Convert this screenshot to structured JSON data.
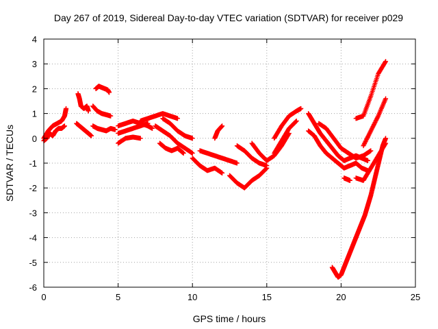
{
  "chart_data": {
    "type": "scatter",
    "title": "Day 267 of 2019, Sidereal Day-to-day VTEC variation (SDTVAR) for receiver p029",
    "xlabel": "GPS time / hours",
    "ylabel": "SDTVAR / TECUs",
    "xlim": [
      0,
      25
    ],
    "ylim": [
      -6,
      4
    ],
    "x_ticks": [
      0,
      5,
      10,
      15,
      20,
      25
    ],
    "x_tick_labels": [
      "0",
      "5",
      "10",
      "15",
      "20",
      "25"
    ],
    "y_ticks": [
      -6,
      -5,
      -4,
      -3,
      -2,
      -1,
      0,
      1,
      2,
      3,
      4
    ],
    "y_tick_labels": [
      "-6",
      "-5",
      "-4",
      "-3",
      "-2",
      "-1",
      "0",
      "1",
      "2",
      "3",
      "4"
    ],
    "grid": true,
    "marker": "+",
    "color": "#ff0000",
    "series": [
      {
        "name": "s1",
        "x": [
          0.0,
          0.3,
          0.6,
          0.9,
          1.2,
          1.4,
          1.5
        ],
        "y": [
          0.0,
          0.3,
          0.5,
          0.6,
          0.7,
          0.9,
          1.2
        ]
      },
      {
        "name": "s2",
        "x": [
          0.0,
          0.2,
          0.4,
          0.6,
          0.8,
          1.0,
          1.2,
          1.4
        ],
        "y": [
          -0.1,
          0.0,
          0.2,
          0.1,
          0.3,
          0.4,
          0.4,
          0.5
        ]
      },
      {
        "name": "s3",
        "x": [
          2.3,
          2.4,
          2.5,
          2.7,
          2.9,
          3.0
        ],
        "y": [
          1.8,
          1.6,
          1.3,
          1.2,
          1.3,
          1.1
        ]
      },
      {
        "name": "s4",
        "x": [
          2.2,
          2.4,
          2.6,
          2.8,
          3.0,
          3.2
        ],
        "y": [
          0.6,
          0.5,
          0.4,
          0.3,
          0.2,
          0.1
        ]
      },
      {
        "name": "s5",
        "x": [
          3.5,
          3.7,
          3.9,
          4.1,
          4.3,
          4.4
        ],
        "y": [
          2.0,
          2.1,
          2.05,
          2.0,
          1.95,
          1.85
        ]
      },
      {
        "name": "s6",
        "x": [
          3.3,
          3.6,
          3.9,
          4.2,
          4.5
        ],
        "y": [
          1.3,
          1.1,
          1.0,
          0.95,
          0.9
        ]
      },
      {
        "name": "s7",
        "x": [
          3.3,
          3.6,
          3.9,
          4.2,
          4.5,
          4.8
        ],
        "y": [
          0.5,
          0.4,
          0.35,
          0.3,
          0.4,
          0.35
        ]
      },
      {
        "name": "s8",
        "x": [
          5.0,
          5.5,
          6.0,
          6.5,
          7.0,
          7.3
        ],
        "y": [
          0.5,
          0.6,
          0.7,
          0.6,
          0.5,
          0.4
        ]
      },
      {
        "name": "s9",
        "x": [
          5.0,
          5.5,
          6.0,
          6.5,
          7.0
        ],
        "y": [
          0.2,
          0.3,
          0.4,
          0.5,
          0.6
        ]
      },
      {
        "name": "s10",
        "x": [
          6.5,
          7.0,
          7.5,
          8.0,
          8.5,
          9.0
        ],
        "y": [
          0.7,
          0.8,
          0.9,
          1.0,
          0.9,
          0.8
        ]
      },
      {
        "name": "s11",
        "x": [
          5.0,
          5.5,
          6.0,
          6.5
        ],
        "y": [
          -0.2,
          0.0,
          0.05,
          0.0
        ]
      },
      {
        "name": "s12",
        "x": [
          7.5,
          8.0,
          8.5,
          9.0,
          9.5,
          10.0
        ],
        "y": [
          0.5,
          0.3,
          0.1,
          -0.2,
          -0.4,
          -0.6
        ]
      },
      {
        "name": "s13",
        "x": [
          8.0,
          8.5,
          9.0,
          9.5,
          10.0
        ],
        "y": [
          0.8,
          0.6,
          0.3,
          0.1,
          0.0
        ]
      },
      {
        "name": "s14",
        "x": [
          7.8,
          8.2,
          8.6,
          9.0,
          9.4
        ],
        "y": [
          -0.2,
          -0.4,
          -0.5,
          -0.4,
          -0.6
        ]
      },
      {
        "name": "s15",
        "x": [
          10.0,
          10.5,
          11.0,
          11.5,
          12.0
        ],
        "y": [
          -0.8,
          -1.1,
          -1.3,
          -1.2,
          -1.4
        ]
      },
      {
        "name": "s16",
        "x": [
          10.5,
          11.0,
          11.5,
          12.0,
          12.5,
          13.0
        ],
        "y": [
          -0.5,
          -0.6,
          -0.7,
          -0.8,
          -0.9,
          -1.0
        ]
      },
      {
        "name": "s17",
        "x": [
          11.5,
          11.7,
          12.0
        ],
        "y": [
          0.0,
          0.3,
          0.5
        ]
      },
      {
        "name": "s18",
        "x": [
          12.5,
          13.0,
          13.5,
          14.0,
          14.5,
          15.0
        ],
        "y": [
          -1.5,
          -1.8,
          -2.0,
          -1.7,
          -1.5,
          -1.2
        ]
      },
      {
        "name": "s19",
        "x": [
          13.0,
          13.5,
          14.0,
          14.5,
          15.0
        ],
        "y": [
          -0.3,
          -0.5,
          -0.8,
          -1.0,
          -1.1
        ]
      },
      {
        "name": "s20",
        "x": [
          14.0,
          14.5,
          15.0,
          15.5,
          16.0,
          16.5
        ],
        "y": [
          -0.2,
          -0.6,
          -0.9,
          -0.7,
          -0.3,
          0.2
        ]
      },
      {
        "name": "s21",
        "x": [
          15.5,
          16.0,
          16.5,
          17.0,
          17.3
        ],
        "y": [
          0.0,
          0.5,
          0.9,
          1.1,
          1.2
        ]
      },
      {
        "name": "s22",
        "x": [
          15.5,
          16.0,
          16.5,
          17.0
        ],
        "y": [
          -0.6,
          -0.1,
          0.4,
          0.7
        ]
      },
      {
        "name": "s23",
        "x": [
          17.8,
          18.2,
          18.6,
          19.0,
          19.4,
          19.8,
          20.2,
          20.6,
          21.0,
          21.4,
          21.8
        ],
        "y": [
          1.0,
          0.6,
          0.2,
          -0.1,
          -0.4,
          -0.7,
          -0.9,
          -0.8,
          -0.7,
          -0.8,
          -0.9
        ]
      },
      {
        "name": "s24",
        "x": [
          17.8,
          18.2,
          18.6,
          19.0,
          19.4,
          19.8,
          20.2,
          20.6,
          21.0,
          21.4,
          21.8
        ],
        "y": [
          0.3,
          0.1,
          -0.3,
          -0.6,
          -0.8,
          -1.0,
          -1.2,
          -1.1,
          -1.0,
          -1.2,
          -1.3
        ]
      },
      {
        "name": "s25",
        "x": [
          18.5,
          19.0,
          19.5,
          20.0,
          20.5,
          21.0,
          21.5,
          22.0
        ],
        "y": [
          0.6,
          0.4,
          0.0,
          -0.4,
          -0.6,
          -0.8,
          -0.7,
          -0.5
        ]
      },
      {
        "name": "s26",
        "x": [
          19.4,
          19.6,
          19.8,
          20.0,
          20.2,
          20.4,
          20.6,
          20.8,
          21.0,
          21.2,
          21.4,
          21.6,
          21.8,
          22.0,
          22.2,
          22.4,
          22.6,
          22.8,
          23.0
        ],
        "y": [
          -5.2,
          -5.4,
          -5.6,
          -5.5,
          -5.2,
          -4.9,
          -4.6,
          -4.3,
          -4.0,
          -3.7,
          -3.4,
          -3.1,
          -2.7,
          -2.3,
          -1.8,
          -1.3,
          -0.8,
          -0.3,
          0.0
        ]
      },
      {
        "name": "s27",
        "x": [
          20.2,
          20.4,
          20.6
        ],
        "y": [
          -1.6,
          -1.65,
          -1.7
        ]
      },
      {
        "name": "s28",
        "x": [
          21.0,
          21.5,
          22.0,
          22.5,
          23.0
        ],
        "y": [
          -1.6,
          -1.7,
          -1.2,
          -0.7,
          -0.2
        ]
      },
      {
        "name": "s29",
        "x": [
          21.5,
          22.0,
          22.5,
          23.0
        ],
        "y": [
          -0.3,
          0.3,
          0.9,
          1.6
        ]
      },
      {
        "name": "s30",
        "x": [
          21.0,
          21.5,
          22.0,
          22.5,
          23.0
        ],
        "y": [
          0.8,
          0.9,
          1.7,
          2.6,
          3.1
        ]
      }
    ]
  }
}
